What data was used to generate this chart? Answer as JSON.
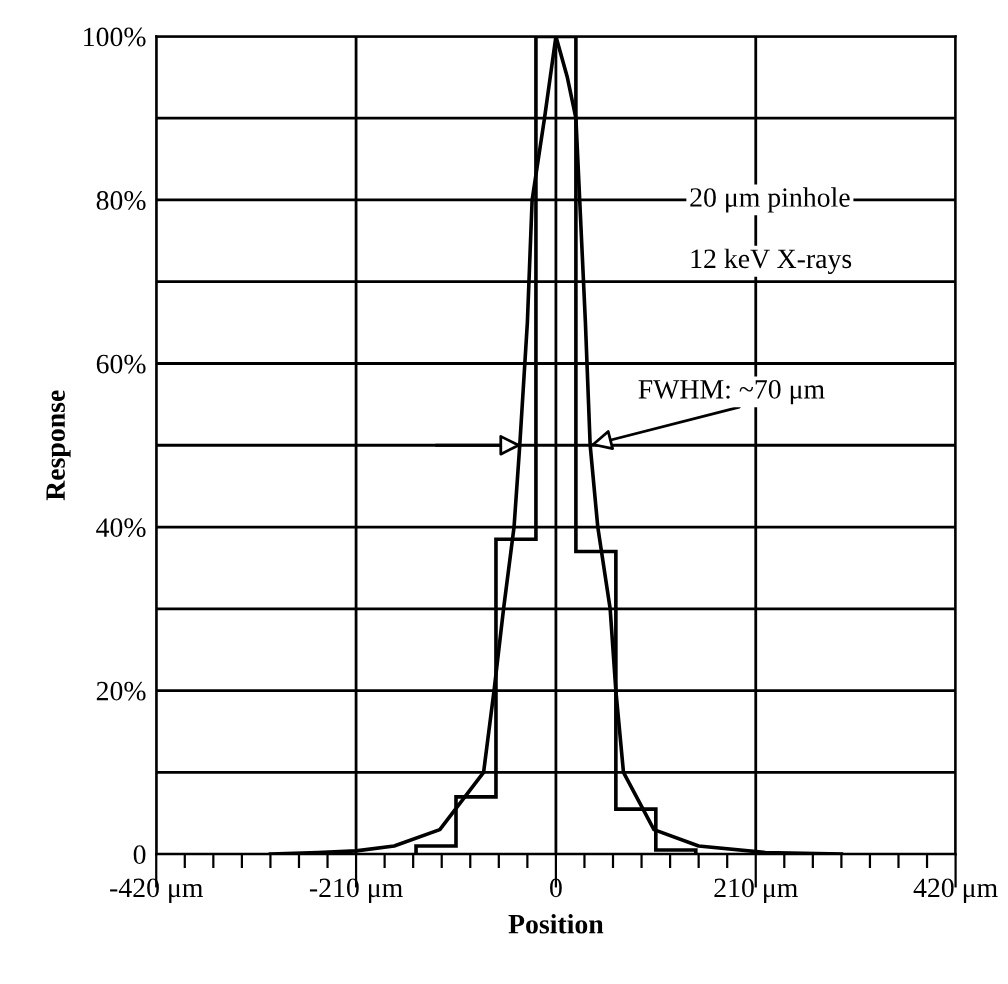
{
  "chart_data": {
    "type": "histogram",
    "xlabel": "Position",
    "ylabel": "Response",
    "series": [
      {
        "color": "#000000",
        "bins": [
          -147,
          -105,
          -63,
          -21,
          21,
          63,
          105,
          147
        ],
        "values": [
          1,
          7,
          38.5,
          100,
          37,
          5.5,
          0.5
        ]
      },
      {
        "type": "line",
        "color": "#000000",
        "x": [
          -300,
          -250,
          -210,
          -170,
          -122,
          -76,
          -65,
          -55,
          -44,
          -38,
          -30,
          -25,
          -12,
          0,
          12,
          21,
          25,
          31,
          36,
          44,
          57,
          63,
          71,
          103,
          150,
          220,
          260,
          300
        ],
        "values": [
          0,
          0.2,
          0.4,
          1,
          3,
          10,
          20,
          30,
          40,
          50,
          65,
          80,
          90,
          100,
          95,
          90,
          80,
          65,
          50,
          40,
          30,
          20,
          10,
          3,
          1,
          0.2,
          0.1,
          0
        ]
      }
    ],
    "annotations": [
      "20 μm pinhole",
      "12 keV X-rays",
      {
        "text": "FWHM: ~70 μm",
        "x": 36,
        "y": 50
      }
    ],
    "xlim": [
      -420,
      420
    ],
    "ylim": [
      0,
      100
    ],
    "xticks": [
      {
        "value": -420,
        "label": "-420 μm"
      },
      {
        "value": -390,
        "label": null
      },
      {
        "value": -360,
        "label": null
      },
      {
        "value": -330,
        "label": null
      },
      {
        "value": -300,
        "label": null
      },
      {
        "value": -270,
        "label": null
      },
      {
        "value": -240,
        "label": null
      },
      {
        "value": -210,
        "label": "-210 μm"
      },
      {
        "value": -180,
        "label": null
      },
      {
        "value": -150,
        "label": null
      },
      {
        "value": -120,
        "label": null
      },
      {
        "value": -90,
        "label": null
      },
      {
        "value": -60,
        "label": null
      },
      {
        "value": -30,
        "label": null
      },
      0,
      {
        "value": 30,
        "label": null
      },
      {
        "value": 60,
        "label": null
      },
      {
        "value": 90,
        "label": null
      },
      {
        "value": 120,
        "label": null
      },
      {
        "value": 150,
        "label": null
      },
      {
        "value": 180,
        "label": null
      },
      {
        "value": 210,
        "label": "210 μm"
      },
      {
        "value": 240,
        "label": null
      },
      {
        "value": 270,
        "label": null
      },
      {
        "value": 300,
        "label": null
      },
      {
        "value": 330,
        "label": null
      },
      {
        "value": 360,
        "label": null
      },
      {
        "value": 390,
        "label": null
      },
      {
        "value": 420,
        "label": "420 μm"
      }
    ],
    "yticks": [
      0,
      {
        "value": 10,
        "label": null
      },
      {
        "value": 20,
        "label": "20%"
      },
      {
        "value": 30,
        "label": null
      },
      {
        "value": 40,
        "label": "40%"
      },
      {
        "value": 50,
        "label": null
      },
      {
        "value": 60,
        "label": "60%"
      },
      {
        "value": 70,
        "label": null
      },
      {
        "value": 80,
        "label": "80%"
      },
      {
        "value": 90,
        "label": null
      },
      {
        "value": 100,
        "label": "100%"
      }
    ],
    "grid": true,
    "legend": false
  }
}
